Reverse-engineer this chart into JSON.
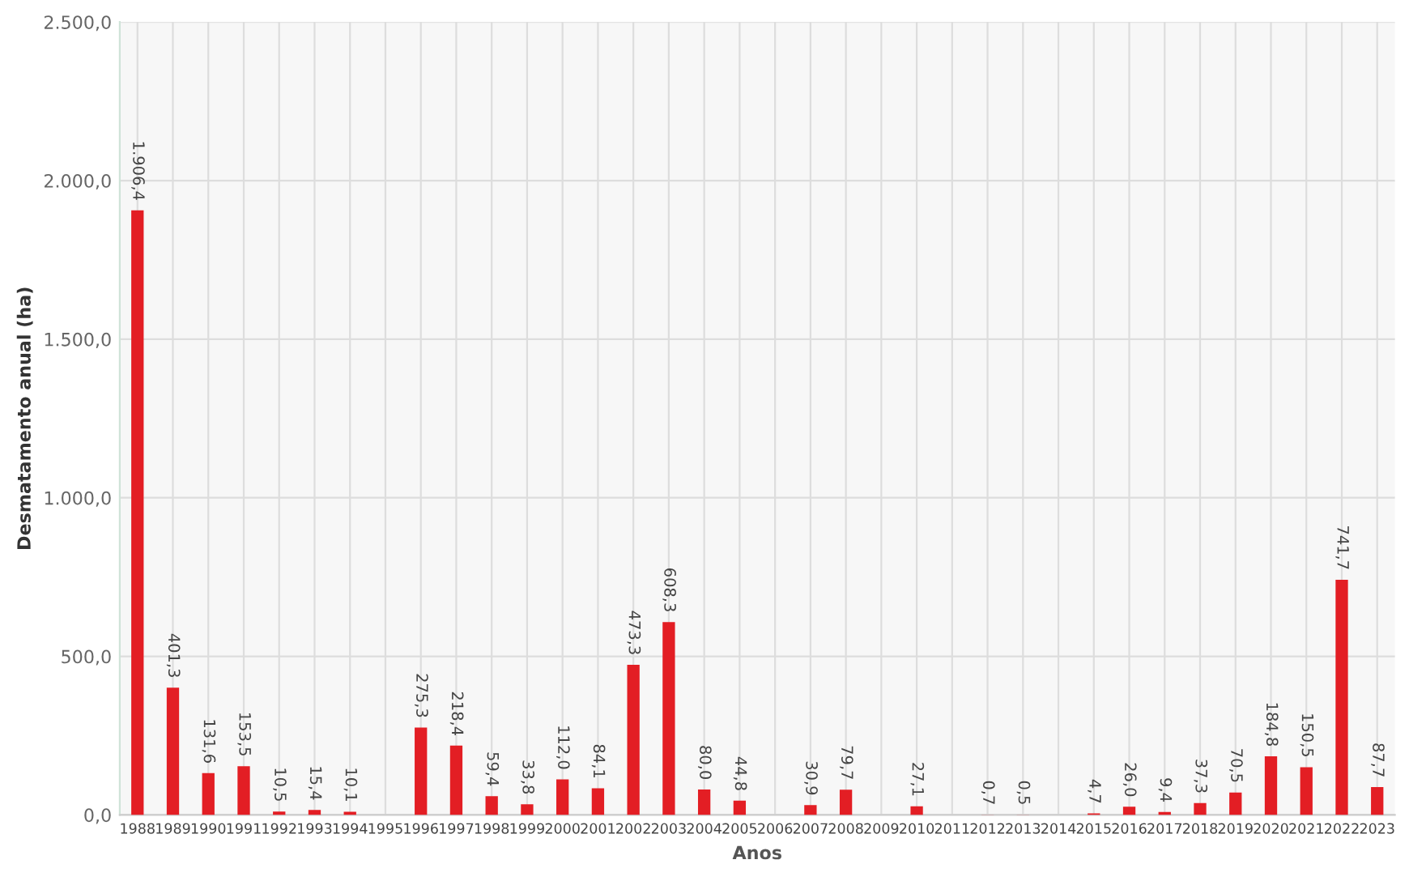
{
  "chart_data": {
    "type": "bar",
    "xlabel": "Anos",
    "ylabel": "Desmatamento anual (ha)",
    "categories": [
      "1988",
      "1989",
      "1990",
      "1991",
      "1992",
      "1993",
      "1994",
      "1995",
      "1996",
      "1997",
      "1998",
      "1999",
      "2000",
      "2001",
      "2002",
      "2003",
      "2004",
      "2005",
      "2006",
      "2007",
      "2008",
      "2009",
      "2010",
      "2011",
      "2012",
      "2013",
      "2014",
      "2015",
      "2016",
      "2017",
      "2018",
      "2019",
      "2020",
      "2021",
      "2022",
      "2023"
    ],
    "values": [
      1906.4,
      401.3,
      131.6,
      153.5,
      10.5,
      15.4,
      10.1,
      null,
      275.3,
      218.4,
      59.4,
      33.8,
      112.0,
      84.1,
      473.3,
      608.3,
      80.0,
      44.8,
      null,
      30.9,
      79.7,
      null,
      27.1,
      null,
      0.7,
      0.5,
      null,
      4.7,
      26.0,
      9.4,
      37.3,
      70.5,
      184.8,
      150.5,
      741.7,
      87.7
    ],
    "value_labels": [
      "1.906,4",
      "401,3",
      "131,6",
      "153,5",
      "10,5",
      "15,4",
      "10,1",
      null,
      "275,3",
      "218,4",
      "59,4",
      "33,8",
      "112,0",
      "84,1",
      "473,3",
      "608,3",
      "80,0",
      "44,8",
      null,
      "30,9",
      "79,7",
      null,
      "27,1",
      null,
      "0,7",
      "0,5",
      null,
      "4,7",
      "26,0",
      "9,4",
      "37,3",
      "70,5",
      "184,8",
      "150,5",
      "741,7",
      "87,7"
    ],
    "color": "#e31e24",
    "ylim": [
      0,
      2500
    ],
    "yticks": [
      {
        "value": 0,
        "label": "0,0"
      },
      {
        "value": 500,
        "label": "500,0"
      },
      {
        "value": 1000,
        "label": "1.000,0"
      },
      {
        "value": 1500,
        "label": "1.500,0"
      },
      {
        "value": 2000,
        "label": "2.000,0"
      },
      {
        "value": 2500,
        "label": "2.500,0"
      }
    ],
    "grid": true
  }
}
